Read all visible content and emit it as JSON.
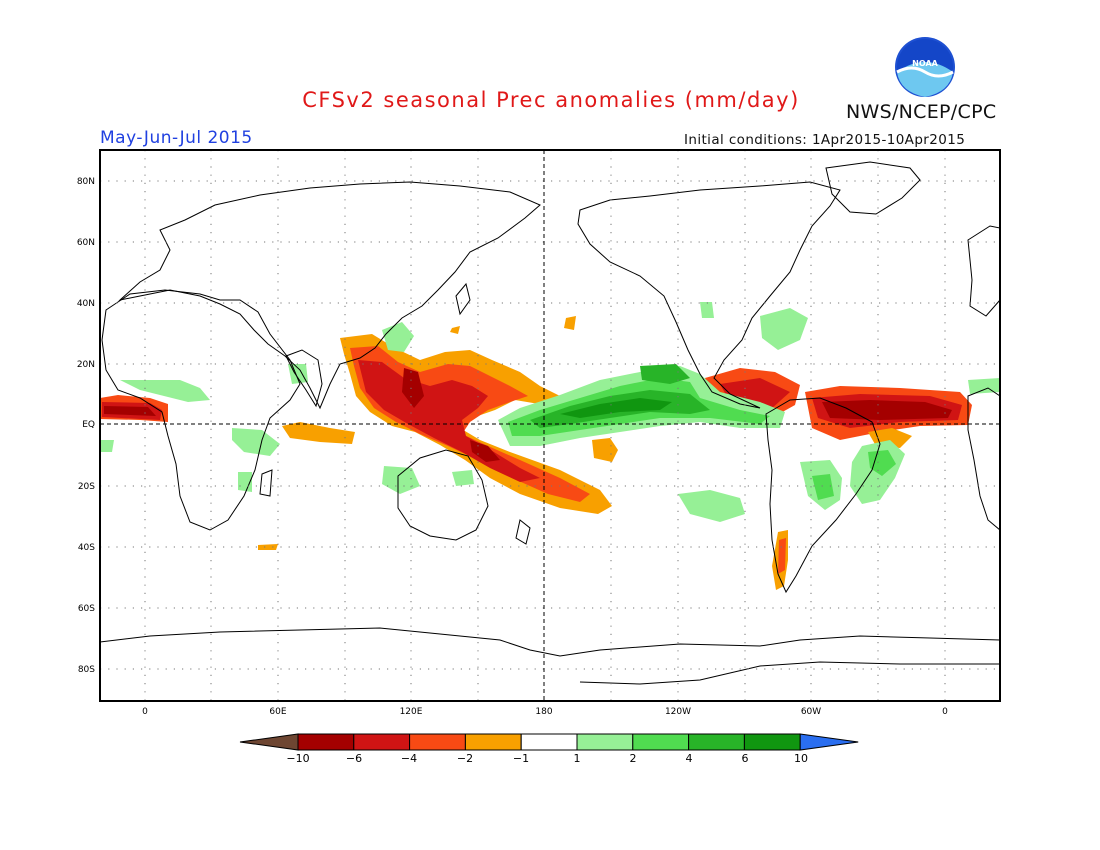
{
  "header": {
    "title": "CFSv2 seasonal Prec anomalies (mm/day)",
    "season": "May-Jun-Jul 2015",
    "initial_conditions": "Initial conditions: 1Apr2015-10Apr2015",
    "agency": "NWS/NCEP/CPC",
    "logo_text": "NOAA"
  },
  "axes": {
    "lat_labels": [
      "80N",
      "60N",
      "40N",
      "20N",
      "EQ",
      "20S",
      "40S",
      "60S",
      "80S"
    ],
    "lon_labels": [
      "0",
      "60E",
      "120E",
      "180",
      "120W",
      "60W",
      "0"
    ]
  },
  "colorbar": {
    "labels": [
      "-10",
      "-6",
      "-4",
      "-2",
      "-1",
      "1",
      "2",
      "4",
      "6",
      "10"
    ],
    "colors": [
      "#6e4632",
      "#a40000",
      "#d01414",
      "#f84a14",
      "#f8a000",
      "#ffffff",
      "#96f096",
      "#50dc50",
      "#28b428",
      "#109610",
      "#2a6ef0"
    ]
  },
  "palette": {
    "dry_strong": "#a40000",
    "dry_mid": "#d01414",
    "dry_low": "#f84a14",
    "dry_weak": "#f8a000",
    "wet_weak": "#96f096",
    "wet_low": "#50dc50",
    "wet_mid": "#28b428",
    "wet_strong": "#109610"
  }
}
